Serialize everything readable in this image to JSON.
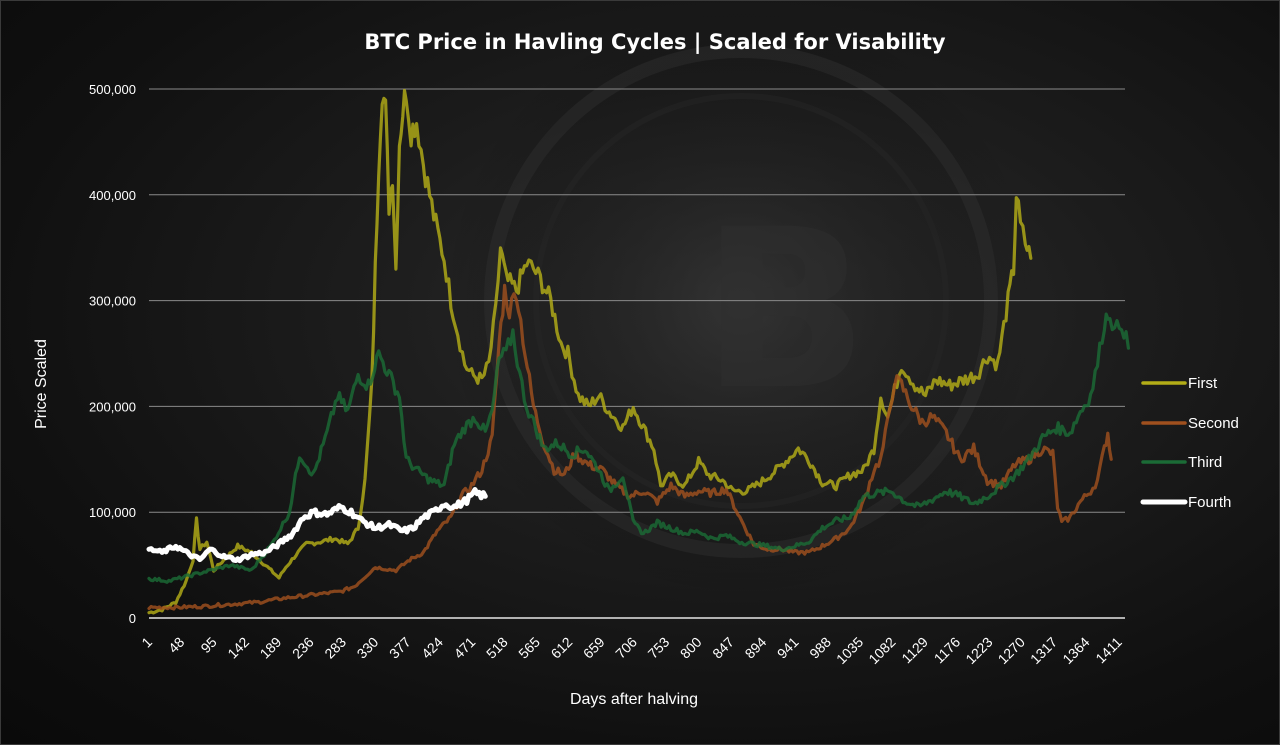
{
  "chart_data": {
    "type": "line",
    "title": "BTC Price in Havling Cycles | Scaled for Visability",
    "xlabel": "Days after halving",
    "ylabel": "Price Scaled",
    "ylim": [
      0,
      500000
    ],
    "yticks": [
      0,
      100000,
      200000,
      300000,
      400000,
      500000
    ],
    "ytick_labels": [
      "0",
      "100,000",
      "200,000",
      "300,000",
      "400,000",
      "500,000"
    ],
    "xlim": [
      1,
      1420
    ],
    "xticks": [
      1,
      48,
      95,
      142,
      189,
      236,
      283,
      330,
      377,
      424,
      471,
      518,
      565,
      612,
      659,
      706,
      753,
      800,
      847,
      894,
      941,
      988,
      1035,
      1082,
      1129,
      1176,
      1223,
      1270,
      1317,
      1364,
      1411
    ],
    "grid": "horizontal",
    "legend_position": "right",
    "series": [
      {
        "name": "First",
        "color": "#b3ad17",
        "points": [
          [
            1,
            5000
          ],
          [
            20,
            8000
          ],
          [
            40,
            15000
          ],
          [
            55,
            35000
          ],
          [
            65,
            55000
          ],
          [
            70,
            92000
          ],
          [
            75,
            65000
          ],
          [
            85,
            72000
          ],
          [
            95,
            45000
          ],
          [
            110,
            55000
          ],
          [
            130,
            68000
          ],
          [
            150,
            62000
          ],
          [
            170,
            50000
          ],
          [
            190,
            38000
          ],
          [
            200,
            48000
          ],
          [
            215,
            60000
          ],
          [
            230,
            70000
          ],
          [
            250,
            72000
          ],
          [
            270,
            75000
          ],
          [
            290,
            70000
          ],
          [
            305,
            85000
          ],
          [
            315,
            130000
          ],
          [
            325,
            220000
          ],
          [
            330,
            330000
          ],
          [
            335,
            430000
          ],
          [
            340,
            500000
          ],
          [
            345,
            480000
          ],
          [
            350,
            390000
          ],
          [
            355,
            420000
          ],
          [
            360,
            330000
          ],
          [
            365,
            450000
          ],
          [
            370,
            480000
          ],
          [
            375,
            500000
          ],
          [
            382,
            460000
          ],
          [
            390,
            470000
          ],
          [
            400,
            430000
          ],
          [
            415,
            380000
          ],
          [
            430,
            340000
          ],
          [
            440,
            300000
          ],
          [
            450,
            270000
          ],
          [
            460,
            240000
          ],
          [
            470,
            230000
          ],
          [
            485,
            225000
          ],
          [
            495,
            240000
          ],
          [
            505,
            290000
          ],
          [
            512,
            350000
          ],
          [
            520,
            320000
          ],
          [
            535,
            310000
          ],
          [
            550,
            335000
          ],
          [
            560,
            330000
          ],
          [
            570,
            320000
          ],
          [
            585,
            300000
          ],
          [
            600,
            260000
          ],
          [
            610,
            250000
          ],
          [
            625,
            210000
          ],
          [
            640,
            200000
          ],
          [
            655,
            210000
          ],
          [
            670,
            195000
          ],
          [
            690,
            180000
          ],
          [
            705,
            200000
          ],
          [
            720,
            180000
          ],
          [
            735,
            160000
          ],
          [
            745,
            125000
          ],
          [
            760,
            135000
          ],
          [
            780,
            125000
          ],
          [
            800,
            148000
          ],
          [
            815,
            135000
          ],
          [
            835,
            130000
          ],
          [
            850,
            120000
          ],
          [
            870,
            120000
          ],
          [
            890,
            128000
          ],
          [
            910,
            138000
          ],
          [
            930,
            150000
          ],
          [
            945,
            160000
          ],
          [
            960,
            150000
          ],
          [
            980,
            128000
          ],
          [
            1000,
            125000
          ],
          [
            1020,
            135000
          ],
          [
            1040,
            140000
          ],
          [
            1055,
            160000
          ],
          [
            1065,
            210000
          ],
          [
            1075,
            190000
          ],
          [
            1085,
            215000
          ],
          [
            1095,
            240000
          ],
          [
            1105,
            230000
          ],
          [
            1115,
            220000
          ],
          [
            1130,
            210000
          ],
          [
            1145,
            225000
          ],
          [
            1165,
            220000
          ],
          [
            1185,
            225000
          ],
          [
            1205,
            230000
          ],
          [
            1220,
            248000
          ],
          [
            1235,
            240000
          ],
          [
            1250,
            300000
          ],
          [
            1258,
            330000
          ],
          [
            1262,
            400000
          ],
          [
            1268,
            370000
          ],
          [
            1275,
            355000
          ],
          [
            1283,
            340000
          ]
        ]
      },
      {
        "name": "Second",
        "color": "#a0501e",
        "points": [
          [
            1,
            10000
          ],
          [
            40,
            10000
          ],
          [
            80,
            11000
          ],
          [
            120,
            13000
          ],
          [
            160,
            15000
          ],
          [
            200,
            19000
          ],
          [
            240,
            22000
          ],
          [
            280,
            25000
          ],
          [
            300,
            30000
          ],
          [
            330,
            48000
          ],
          [
            360,
            45000
          ],
          [
            380,
            55000
          ],
          [
            400,
            62000
          ],
          [
            420,
            82000
          ],
          [
            440,
            95000
          ],
          [
            455,
            115000
          ],
          [
            470,
            125000
          ],
          [
            485,
            140000
          ],
          [
            500,
            170000
          ],
          [
            510,
            260000
          ],
          [
            518,
            310000
          ],
          [
            525,
            290000
          ],
          [
            535,
            310000
          ],
          [
            548,
            250000
          ],
          [
            560,
            200000
          ],
          [
            575,
            165000
          ],
          [
            590,
            140000
          ],
          [
            605,
            135000
          ],
          [
            620,
            155000
          ],
          [
            640,
            145000
          ],
          [
            660,
            140000
          ],
          [
            680,
            125000
          ],
          [
            700,
            115000
          ],
          [
            720,
            120000
          ],
          [
            740,
            110000
          ],
          [
            760,
            125000
          ],
          [
            780,
            115000
          ],
          [
            800,
            120000
          ],
          [
            820,
            118000
          ],
          [
            840,
            122000
          ],
          [
            860,
            95000
          ],
          [
            880,
            70000
          ],
          [
            900,
            65000
          ],
          [
            920,
            65000
          ],
          [
            940,
            62000
          ],
          [
            960,
            62000
          ],
          [
            980,
            68000
          ],
          [
            1000,
            75000
          ],
          [
            1020,
            85000
          ],
          [
            1040,
            110000
          ],
          [
            1055,
            140000
          ],
          [
            1065,
            150000
          ],
          [
            1075,
            185000
          ],
          [
            1085,
            225000
          ],
          [
            1095,
            220000
          ],
          [
            1110,
            200000
          ],
          [
            1125,
            185000
          ],
          [
            1140,
            190000
          ],
          [
            1160,
            175000
          ],
          [
            1180,
            150000
          ],
          [
            1200,
            160000
          ],
          [
            1220,
            130000
          ],
          [
            1240,
            125000
          ],
          [
            1260,
            145000
          ],
          [
            1280,
            150000
          ],
          [
            1300,
            160000
          ],
          [
            1315,
            155000
          ],
          [
            1322,
            105000
          ],
          [
            1328,
            90000
          ],
          [
            1340,
            95000
          ],
          [
            1355,
            110000
          ],
          [
            1370,
            120000
          ],
          [
            1380,
            130000
          ],
          [
            1390,
            160000
          ],
          [
            1395,
            175000
          ],
          [
            1400,
            150000
          ]
        ]
      },
      {
        "name": "Third",
        "color": "#1b6b36",
        "points": [
          [
            1,
            37000
          ],
          [
            30,
            35000
          ],
          [
            60,
            40000
          ],
          [
            90,
            45000
          ],
          [
            120,
            50000
          ],
          [
            150,
            45000
          ],
          [
            180,
            70000
          ],
          [
            205,
            100000
          ],
          [
            220,
            155000
          ],
          [
            240,
            135000
          ],
          [
            260,
            175000
          ],
          [
            275,
            210000
          ],
          [
            290,
            195000
          ],
          [
            305,
            230000
          ],
          [
            320,
            220000
          ],
          [
            335,
            250000
          ],
          [
            350,
            230000
          ],
          [
            365,
            210000
          ],
          [
            375,
            150000
          ],
          [
            390,
            140000
          ],
          [
            410,
            130000
          ],
          [
            430,
            125000
          ],
          [
            445,
            165000
          ],
          [
            460,
            180000
          ],
          [
            475,
            190000
          ],
          [
            490,
            175000
          ],
          [
            500,
            195000
          ],
          [
            510,
            245000
          ],
          [
            520,
            250000
          ],
          [
            530,
            270000
          ],
          [
            540,
            230000
          ],
          [
            550,
            200000
          ],
          [
            560,
            185000
          ],
          [
            575,
            160000
          ],
          [
            595,
            165000
          ],
          [
            615,
            155000
          ],
          [
            635,
            160000
          ],
          [
            655,
            140000
          ],
          [
            670,
            120000
          ],
          [
            690,
            135000
          ],
          [
            705,
            90000
          ],
          [
            720,
            80000
          ],
          [
            740,
            90000
          ],
          [
            760,
            85000
          ],
          [
            780,
            80000
          ],
          [
            800,
            82000
          ],
          [
            820,
            75000
          ],
          [
            840,
            78000
          ],
          [
            860,
            72000
          ],
          [
            880,
            70000
          ],
          [
            900,
            68000
          ],
          [
            920,
            65000
          ],
          [
            940,
            68000
          ],
          [
            960,
            72000
          ],
          [
            980,
            85000
          ],
          [
            1000,
            92000
          ],
          [
            1020,
            95000
          ],
          [
            1040,
            115000
          ],
          [
            1060,
            118000
          ],
          [
            1080,
            120000
          ],
          [
            1100,
            110000
          ],
          [
            1120,
            105000
          ],
          [
            1140,
            112000
          ],
          [
            1160,
            120000
          ],
          [
            1180,
            115000
          ],
          [
            1200,
            108000
          ],
          [
            1220,
            115000
          ],
          [
            1240,
            125000
          ],
          [
            1260,
            135000
          ],
          [
            1280,
            150000
          ],
          [
            1300,
            170000
          ],
          [
            1320,
            180000
          ],
          [
            1340,
            175000
          ],
          [
            1355,
            195000
          ],
          [
            1370,
            210000
          ],
          [
            1380,
            240000
          ],
          [
            1390,
            280000
          ],
          [
            1398,
            290000
          ],
          [
            1405,
            270000
          ],
          [
            1415,
            280000
          ],
          [
            1425,
            255000
          ]
        ]
      },
      {
        "name": "Fourth",
        "color": "#ffffff",
        "points": [
          [
            1,
            65000
          ],
          [
            20,
            62000
          ],
          [
            40,
            68000
          ],
          [
            60,
            60000
          ],
          [
            75,
            55000
          ],
          [
            90,
            65000
          ],
          [
            110,
            58000
          ],
          [
            130,
            55000
          ],
          [
            150,
            60000
          ],
          [
            170,
            62000
          ],
          [
            190,
            70000
          ],
          [
            210,
            80000
          ],
          [
            225,
            95000
          ],
          [
            240,
            100000
          ],
          [
            260,
            98000
          ],
          [
            280,
            105000
          ],
          [
            295,
            100000
          ],
          [
            310,
            92000
          ],
          [
            330,
            85000
          ],
          [
            350,
            88000
          ],
          [
            370,
            82000
          ],
          [
            385,
            85000
          ],
          [
            400,
            95000
          ],
          [
            415,
            100000
          ],
          [
            430,
            108000
          ],
          [
            445,
            105000
          ],
          [
            460,
            110000
          ],
          [
            475,
            118000
          ],
          [
            490,
            115000
          ]
        ]
      }
    ]
  }
}
